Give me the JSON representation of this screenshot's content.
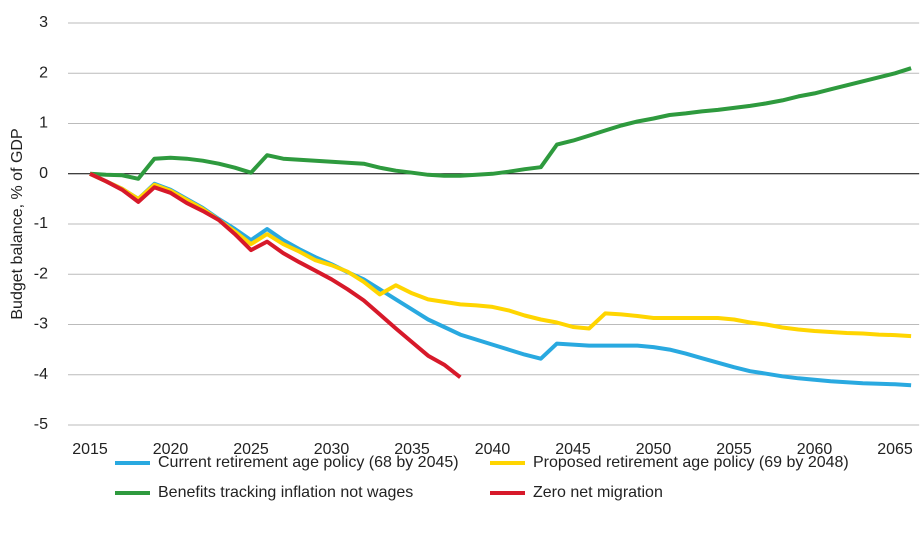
{
  "chart_data": {
    "type": "line",
    "y_label": "Budget balance, % of GDP",
    "x": [
      2015,
      2016,
      2017,
      2018,
      2019,
      2020,
      2021,
      2022,
      2023,
      2024,
      2025,
      2026,
      2027,
      2028,
      2029,
      2030,
      2031,
      2032,
      2033,
      2034,
      2035,
      2036,
      2037,
      2038,
      2039,
      2040,
      2041,
      2042,
      2043,
      2044,
      2045,
      2046,
      2047,
      2048,
      2049,
      2050,
      2051,
      2052,
      2053,
      2054,
      2055,
      2056,
      2057,
      2058,
      2059,
      2060,
      2061,
      2062,
      2063,
      2064,
      2065,
      2066
    ],
    "xlim": [
      2015,
      2066.5
    ],
    "xticks": [
      2015,
      2020,
      2025,
      2030,
      2035,
      2040,
      2045,
      2050,
      2055,
      2060,
      2065
    ],
    "ylim": [
      -5,
      3
    ],
    "yticks": [
      -5,
      -4,
      -3,
      -2,
      -1,
      0,
      1,
      2,
      3
    ],
    "grid": true,
    "legend": "bottom",
    "series": [
      {
        "name": "Benefits tracking inflation not wages",
        "color": "#2e9a3e",
        "values": [
          0,
          -0.02,
          -0.03,
          -0.1,
          0.3,
          0.32,
          0.3,
          0.26,
          0.2,
          0.12,
          0.02,
          0.37,
          0.3,
          0.28,
          0.26,
          0.24,
          0.22,
          0.2,
          0.12,
          0.06,
          0.02,
          -0.02,
          -0.04,
          -0.04,
          -0.02,
          0.0,
          0.04,
          0.09,
          0.13,
          0.58,
          0.66,
          0.76,
          0.86,
          0.96,
          1.04,
          1.1,
          1.17,
          1.2,
          1.24,
          1.27,
          1.31,
          1.35,
          1.4,
          1.46,
          1.54,
          1.6,
          1.68,
          1.76,
          1.84,
          1.92,
          2.0,
          2.1
        ]
      },
      {
        "name": "Current retirement age policy (68 by 2045)",
        "color": "#29a9e0",
        "values": [
          0,
          -0.15,
          -0.3,
          -0.5,
          -0.2,
          -0.32,
          -0.5,
          -0.68,
          -0.9,
          -1.1,
          -1.32,
          -1.1,
          -1.32,
          -1.5,
          -1.66,
          -1.8,
          -1.96,
          -2.1,
          -2.3,
          -2.5,
          -2.7,
          -2.9,
          -3.05,
          -3.2,
          -3.3,
          -3.4,
          -3.5,
          -3.6,
          -3.68,
          -3.38,
          -3.4,
          -3.42,
          -3.42,
          -3.42,
          -3.42,
          -3.45,
          -3.5,
          -3.58,
          -3.67,
          -3.76,
          -3.85,
          -3.93,
          -3.98,
          -4.03,
          -4.07,
          -4.1,
          -4.13,
          -4.15,
          -4.17,
          -4.18,
          -4.19,
          -4.21
        ]
      },
      {
        "name": "Proposed retirement age policy (69 by 2048)",
        "color": "#ffd500",
        "values": [
          0,
          -0.15,
          -0.3,
          -0.5,
          -0.22,
          -0.34,
          -0.52,
          -0.7,
          -0.92,
          -1.15,
          -1.4,
          -1.2,
          -1.4,
          -1.55,
          -1.72,
          -1.82,
          -1.95,
          -2.15,
          -2.4,
          -2.22,
          -2.38,
          -2.5,
          -2.55,
          -2.6,
          -2.62,
          -2.65,
          -2.72,
          -2.82,
          -2.9,
          -2.96,
          -3.05,
          -3.08,
          -2.78,
          -2.8,
          -2.83,
          -2.87,
          -2.87,
          -2.87,
          -2.87,
          -2.87,
          -2.9,
          -2.96,
          -3.0,
          -3.06,
          -3.1,
          -3.13,
          -3.15,
          -3.17,
          -3.18,
          -3.2,
          -3.21,
          -3.23
        ]
      },
      {
        "name": "Zero net migration",
        "color": "#d7192a",
        "values": [
          0,
          -0.15,
          -0.32,
          -0.56,
          -0.27,
          -0.38,
          -0.58,
          -0.74,
          -0.92,
          -1.2,
          -1.52,
          -1.35,
          -1.58,
          -1.76,
          -1.93,
          -2.1,
          -2.3,
          -2.52,
          -2.8,
          -3.08,
          -3.35,
          -3.62,
          -3.8,
          -4.05,
          null,
          null,
          null,
          null,
          null,
          null,
          null,
          null,
          null,
          null,
          null,
          null,
          null,
          null,
          null,
          null,
          null,
          null,
          null,
          null,
          null,
          null,
          null,
          null,
          null,
          null,
          null,
          null
        ]
      }
    ],
    "legend_order": [
      1,
      2,
      0,
      3
    ]
  }
}
